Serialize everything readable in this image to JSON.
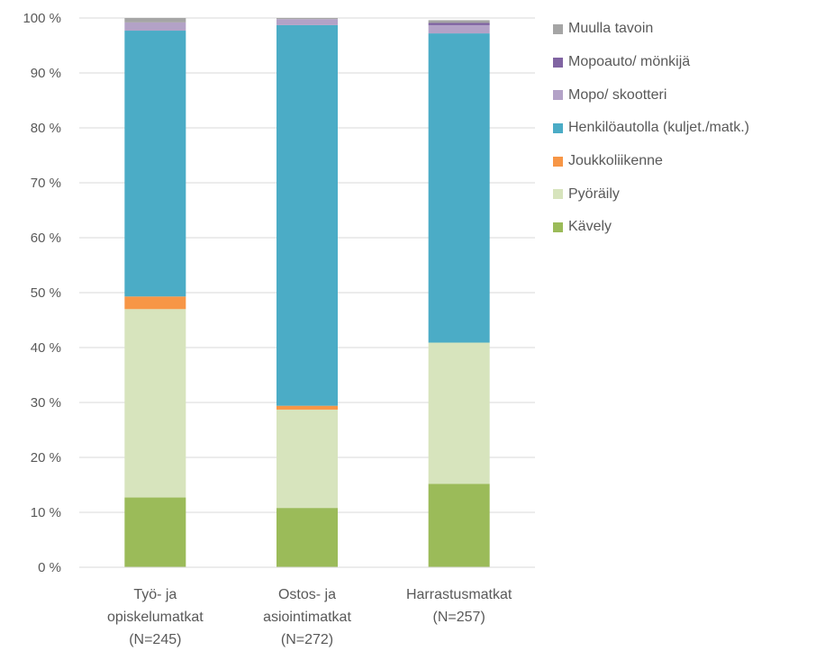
{
  "chart_data": {
    "type": "bar",
    "stacked": true,
    "categories": [
      [
        "Työ- ja",
        "opiskelumatkat",
        "(N=245)"
      ],
      [
        "Ostos- ja",
        "asiointimatkat",
        "(N=272)"
      ],
      [
        "Harrastusmatkat",
        "(N=257)"
      ]
    ],
    "series": [
      {
        "name": "Kävely",
        "color": "#9bbb59",
        "values": [
          12.7,
          10.8,
          15.2
        ]
      },
      {
        "name": "Pyöräily",
        "color": "#d7e4bd",
        "values": [
          34.3,
          17.9,
          25.7
        ]
      },
      {
        "name": "Joukkoliikenne",
        "color": "#f79646",
        "values": [
          2.3,
          0.7,
          0.0
        ]
      },
      {
        "name": "Henkilöautolla (kuljet./matk.)",
        "color": "#4bacc6",
        "values": [
          48.4,
          69.3,
          56.3
        ]
      },
      {
        "name": "Mopo/ skootteri",
        "color": "#b3a2c7",
        "values": [
          1.5,
          1.1,
          1.5
        ]
      },
      {
        "name": "Mopoauto/ mönkijä",
        "color": "#8064a2",
        "values": [
          0.0,
          0.0,
          0.4
        ]
      },
      {
        "name": "Muulla tavoin",
        "color": "#a5a5a5",
        "values": [
          0.8,
          0.2,
          0.5
        ]
      }
    ],
    "y_ticks": [
      "0 %",
      "10 %",
      "20 %",
      "30 %",
      "40 %",
      "50 %",
      "60 %",
      "70 %",
      "80 %",
      "90 %",
      "100 %"
    ],
    "ylim": [
      0,
      100
    ],
    "grid": true,
    "legend_position": "right",
    "legend_order": [
      "Muulla tavoin",
      "Mopoauto/ mönkijä",
      "Mopo/ skootteri",
      "Henkilöautolla (kuljet./matk.)",
      "Joukkoliikenne",
      "Pyöräily",
      "Kävely"
    ]
  }
}
